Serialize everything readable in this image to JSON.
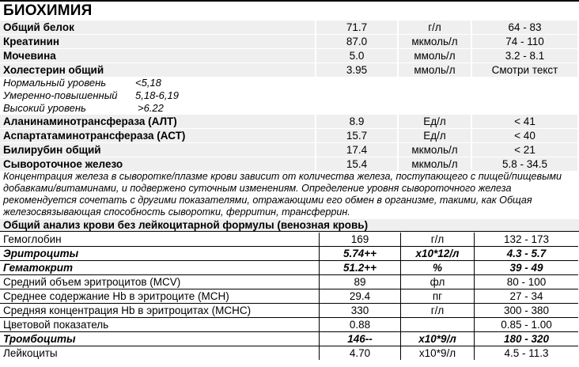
{
  "title": "БИОХИМИЯ",
  "biochem": [
    {
      "name": "Общий белок",
      "value": "71.7",
      "unit": "г/л",
      "ref": "64 - 83"
    },
    {
      "name": "Креатинин",
      "value": "87.0",
      "unit": "мкмоль/л",
      "ref": "74 - 110"
    },
    {
      "name": "Мочевина",
      "value": "5.0",
      "unit": "ммоль/л",
      "ref": "3.2 - 8.1"
    },
    {
      "name": "Холестерин общий",
      "value": "3.95",
      "unit": "ммоль/л",
      "ref": "Смотри текст"
    },
    {
      "name": "Аланинаминотрансфераза (АЛТ)",
      "value": "8.9",
      "unit": "Ед/л",
      "ref": "< 41"
    },
    {
      "name": "Аспартатаминотрансфераза (АСТ)",
      "value": "15.7",
      "unit": "Ед/л",
      "ref": "< 40"
    },
    {
      "name": "Билирубин общий",
      "value": "17.4",
      "unit": "мкмоль/л",
      "ref": "< 21"
    },
    {
      "name": "Сывороточное железо",
      "value": "15.4",
      "unit": "мкмоль/л",
      "ref": "5.8 - 34.5"
    }
  ],
  "cholesterol_notes": [
    {
      "label": "Нормальный уровень",
      "value": "<5,18"
    },
    {
      "label": "Умеренно-повышенный",
      "value": "5,18-6,19"
    },
    {
      "label": "Высокий уровень",
      "value": ">6.22"
    }
  ],
  "iron_note": "Концентрация железа в сыворотке/плазме крови зависит от количества железа, поступающего с пищей/пищевыми добавками/витаминами, и подвержено суточным изменениям. Определение уровня сывороточного железа рекомендуется сочетать с другими показателями, отражающими его обмен в организме, такими, как Общая железосвязывающая способность сыворотки, ферритин, трансферрин.",
  "blood_section_title": "Общий анализ крови без лейкоцитарной формулы (венозная кровь)",
  "blood": [
    {
      "name": "Гемоглобин",
      "value": "169",
      "unit": "г/л",
      "ref": "132 - 173",
      "flag": false
    },
    {
      "name": "Эритроциты",
      "value": "5.74++",
      "unit": "х10*12/л",
      "ref": "4.3 - 5.7",
      "flag": true
    },
    {
      "name": "Гематокрит",
      "value": "51.2++",
      "unit": "%",
      "ref": "39 - 49",
      "flag": true
    },
    {
      "name": "Средний объем эритроцитов (MCV)",
      "value": "89",
      "unit": "фл",
      "ref": "80 - 100",
      "flag": false
    },
    {
      "name": "Среднее содержание Hb в эритроците (MCH)",
      "value": "29.4",
      "unit": "пг",
      "ref": "27 - 34",
      "flag": false
    },
    {
      "name": "Средняя концентрация Hb в эритроцитах (MCHC)",
      "value": "330",
      "unit": "г/л",
      "ref": "300 - 380",
      "flag": false
    },
    {
      "name": "Цветовой показатель",
      "value": "0.88",
      "unit": "",
      "ref": "0.85 - 1.00",
      "flag": false
    },
    {
      "name": "Тромбоциты",
      "value": "146--",
      "unit": "х10*9/л",
      "ref": "180 - 320",
      "flag": true
    },
    {
      "name": "Лейкоциты",
      "value": "4.70",
      "unit": "х10*9/л",
      "ref": "4.5 - 11.3",
      "flag": false
    }
  ]
}
